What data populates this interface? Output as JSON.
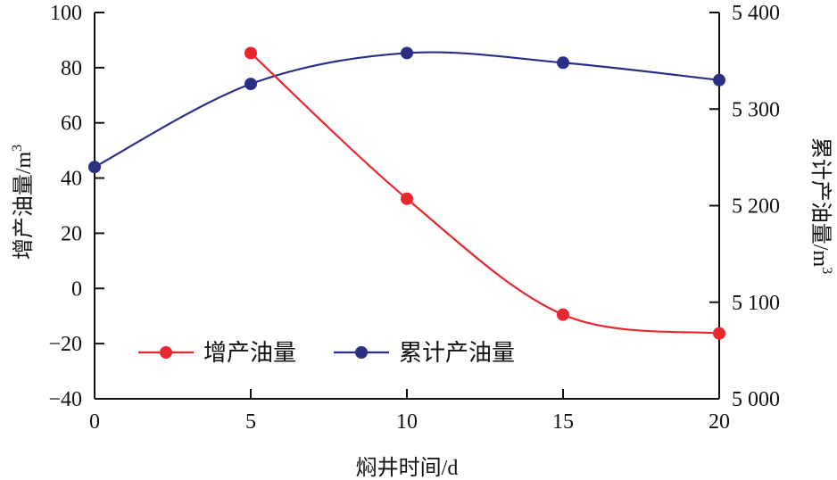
{
  "chart_data": {
    "type": "line",
    "x": [
      0,
      5,
      10,
      15,
      20
    ],
    "xlabel": "焖井时间/d",
    "xlim": [
      0,
      20
    ],
    "xticks": [
      "0",
      "5",
      "10",
      "15",
      "20"
    ],
    "y_left": {
      "label": "增产油量/m",
      "label_sup": "3",
      "lim": [
        -40,
        100
      ],
      "ticks": [
        -40,
        -20,
        0,
        20,
        40,
        60,
        80,
        100
      ],
      "tick_labels": [
        "−40",
        "−20",
        "0",
        "20",
        "40",
        "60",
        "80",
        "100"
      ]
    },
    "y_right": {
      "label": "累计产油量/m",
      "label_sup": "3",
      "lim": [
        5000,
        5400
      ],
      "ticks": [
        5000,
        5100,
        5200,
        5300,
        5400
      ],
      "tick_labels": [
        "5 000",
        "5 100",
        "5 200",
        "5 300",
        "5 400"
      ]
    },
    "series": [
      {
        "name": "增产油量",
        "axis": "left",
        "color": "#e8262d",
        "points": [
          [
            5,
            85.3
          ],
          [
            10,
            32.5
          ],
          [
            15,
            -9.5
          ],
          [
            20,
            -16.3
          ]
        ]
      },
      {
        "name": "累计产油量",
        "axis": "right",
        "color": "#2a2f85",
        "points": [
          [
            0,
            5240
          ],
          [
            5,
            5326
          ],
          [
            10,
            5358
          ],
          [
            15,
            5348
          ],
          [
            20,
            5330
          ]
        ]
      }
    ],
    "legend_position": "bottom-left",
    "grid": false
  }
}
